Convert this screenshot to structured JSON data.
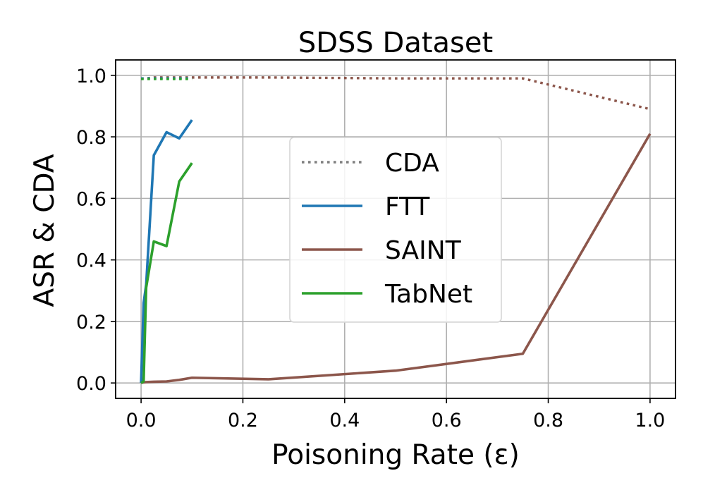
{
  "chart_data": {
    "type": "line",
    "title": "SDSS Dataset",
    "xlabel": "Poisoning Rate (ε)",
    "ylabel": "ASR & CDA",
    "xlim": [
      -0.05,
      1.05
    ],
    "ylim": [
      -0.05,
      1.05
    ],
    "xticks": [
      0.0,
      0.2,
      0.4,
      0.6,
      0.8,
      1.0
    ],
    "xtick_labels": [
      "0.0",
      "0.2",
      "0.4",
      "0.6",
      "0.8",
      "1.0"
    ],
    "yticks": [
      0.0,
      0.2,
      0.4,
      0.6,
      0.8,
      1.0
    ],
    "ytick_labels": [
      "0.0",
      "0.2",
      "0.4",
      "0.6",
      "0.8",
      "1.0"
    ],
    "grid": true,
    "legend_position": "center",
    "series": [
      {
        "name": "CDA",
        "style": "dotted",
        "color": "#8c564b",
        "in_legend": false,
        "x": [
          0.0,
          0.005,
          0.01,
          0.025,
          0.05,
          0.075,
          0.1,
          0.25,
          0.5,
          0.75,
          1.0
        ],
        "y": [
          0.99,
          0.99,
          0.99,
          0.993,
          0.993,
          0.993,
          0.993,
          0.993,
          0.99,
          0.99,
          0.89
        ]
      },
      {
        "name": "CDA",
        "style": "dotted",
        "color": "#1f77b4",
        "in_legend": false,
        "x": [
          0.0,
          0.005,
          0.01,
          0.025,
          0.05,
          0.075,
          0.1
        ],
        "y": [
          0.99,
          0.99,
          0.99,
          0.99,
          0.99,
          0.99,
          0.99
        ]
      },
      {
        "name": "CDA",
        "style": "dotted",
        "color": "#2ca02c",
        "in_legend": false,
        "x": [
          0.0,
          0.005,
          0.01,
          0.025,
          0.05,
          0.075,
          0.1
        ],
        "y": [
          0.988,
          0.988,
          0.988,
          0.988,
          0.988,
          0.988,
          0.988
        ]
      },
      {
        "name": "FTT",
        "style": "solid",
        "color": "#1f77b4",
        "in_legend": true,
        "x": [
          0.0,
          0.005,
          0.01,
          0.025,
          0.05,
          0.075,
          0.1
        ],
        "y": [
          0.0,
          0.26,
          0.32,
          0.74,
          0.815,
          0.795,
          0.855
        ]
      },
      {
        "name": "SAINT",
        "style": "solid",
        "color": "#8c564b",
        "in_legend": true,
        "x": [
          0.0,
          0.005,
          0.01,
          0.025,
          0.05,
          0.075,
          0.1,
          0.25,
          0.5,
          0.75,
          1.0
        ],
        "y": [
          0.0,
          0.002,
          0.003,
          0.004,
          0.005,
          0.01,
          0.017,
          0.012,
          0.04,
          0.095,
          0.81
        ]
      },
      {
        "name": "TabNet",
        "style": "solid",
        "color": "#2ca02c",
        "in_legend": true,
        "x": [
          0.0,
          0.005,
          0.01,
          0.025,
          0.05,
          0.075,
          0.1
        ],
        "y": [
          0.0,
          0.005,
          0.31,
          0.46,
          0.445,
          0.655,
          0.715
        ]
      }
    ],
    "legend": [
      {
        "label": "CDA",
        "style": "dotted",
        "color": "#7f7f7f"
      },
      {
        "label": "FTT",
        "style": "solid",
        "color": "#1f77b4"
      },
      {
        "label": "SAINT",
        "style": "solid",
        "color": "#8c564b"
      },
      {
        "label": "TabNet",
        "style": "solid",
        "color": "#2ca02c"
      }
    ]
  }
}
